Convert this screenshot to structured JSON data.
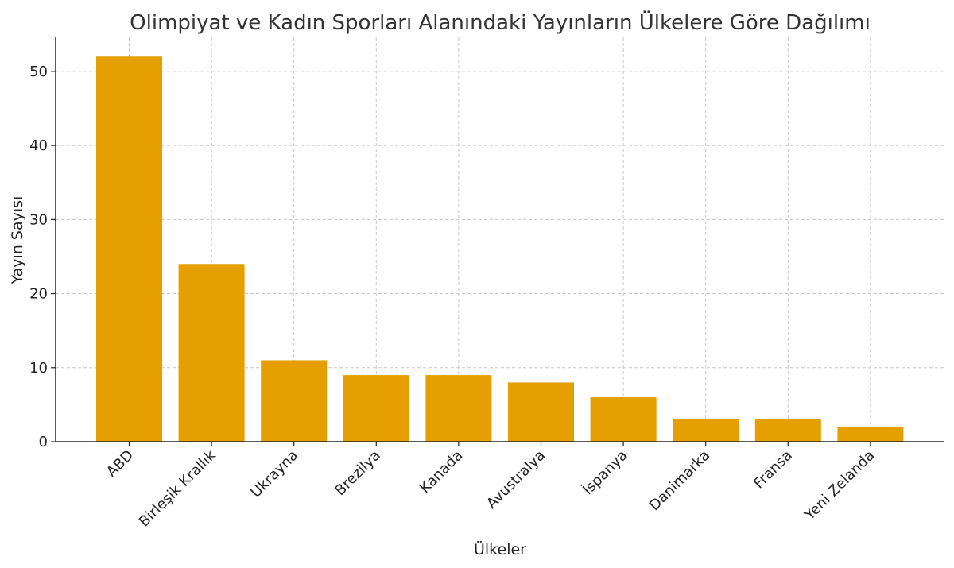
{
  "chart_data": {
    "type": "bar",
    "title": "Olimpiyat ve Kadın Sporları Alanındaki Yayınların Ülkelere Göre Dağılımı",
    "xlabel": "Ülkeler",
    "ylabel": "Yayın Sayısı",
    "categories": [
      "ABD",
      "Birleşik Krallık",
      "Ukrayna",
      "Brezilya",
      "Kanada",
      "Avustralya",
      "İspanya",
      "Danimarka",
      "Fransa",
      "Yeni Zelanda"
    ],
    "values": [
      52,
      24,
      11,
      9,
      9,
      8,
      6,
      3,
      3,
      2
    ],
    "ylim": [
      0,
      54.6
    ],
    "yticks": [
      0,
      10,
      20,
      30,
      40,
      50
    ],
    "grid": true,
    "bar_color": "#E69F00"
  }
}
